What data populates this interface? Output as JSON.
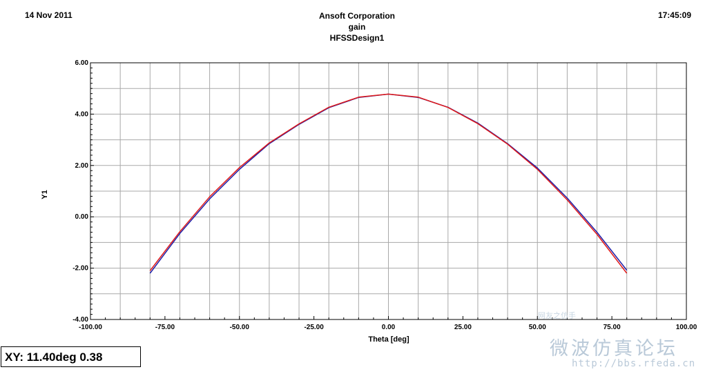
{
  "header": {
    "date": "14 Nov 2011",
    "time": "17:45:09",
    "company": "Ansoft Corporation",
    "plot_name": "gain",
    "design": "HFSSDesign1"
  },
  "readout": "XY: 11.40deg 0.38",
  "watermark": {
    "chinese": "微波仿真论坛",
    "url": "http://bbs.rfeda.cn",
    "small": "网友之仿手"
  },
  "colors": {
    "series_blue": "#1f1fa8",
    "series_red": "#e01818",
    "grid": "#a8a8a8",
    "watermark": "#b9c9d8"
  },
  "chart_data": {
    "type": "line",
    "title": "",
    "xlabel": "Theta [deg]",
    "ylabel": "Y1",
    "xlim": [
      -100,
      100
    ],
    "ylim": [
      -4,
      6
    ],
    "xticks": [
      -100,
      -75,
      -50,
      -25,
      0,
      25,
      50,
      75,
      100
    ],
    "xtick_labels": [
      "-100.00",
      "-75.00",
      "-50.00",
      "-25.00",
      "0.00",
      "25.00",
      "50.00",
      "75.00",
      "100.00"
    ],
    "yticks": [
      -4,
      -2,
      0,
      2,
      4,
      6
    ],
    "ytick_labels": [
      "-4.00",
      "-2.00",
      "0.00",
      "2.00",
      "4.00",
      "6.00"
    ],
    "grid": true,
    "series": [
      {
        "color": "#1f1fa8",
        "x": [
          -80,
          -70,
          -60,
          -50,
          -40,
          -30,
          -20,
          -10,
          0,
          10,
          20,
          30,
          40,
          50,
          60,
          70,
          80
        ],
        "y": [
          -2.2,
          -0.65,
          0.7,
          1.85,
          2.85,
          3.6,
          4.25,
          4.65,
          4.78,
          4.65,
          4.27,
          3.65,
          2.85,
          1.9,
          0.73,
          -0.6,
          -2.08
        ]
      },
      {
        "color": "#e01818",
        "x": [
          -80,
          -70,
          -60,
          -50,
          -40,
          -30,
          -20,
          -10,
          0,
          10,
          20,
          30,
          40,
          50,
          60,
          70,
          80
        ],
        "y": [
          -2.1,
          -0.58,
          0.78,
          1.92,
          2.88,
          3.62,
          4.27,
          4.66,
          4.78,
          4.66,
          4.26,
          3.63,
          2.83,
          1.85,
          0.66,
          -0.68,
          -2.2
        ]
      }
    ]
  }
}
